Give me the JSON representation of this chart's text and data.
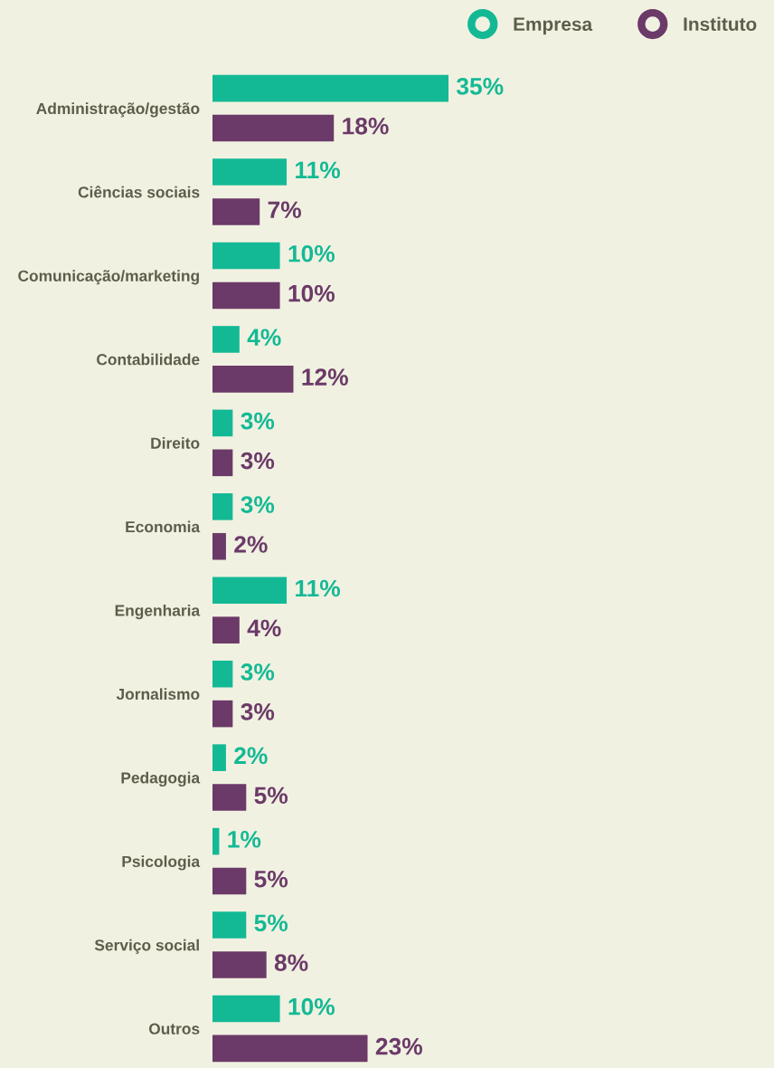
{
  "chart_data": {
    "type": "bar",
    "orientation": "horizontal",
    "legend": "top right",
    "tick_labels": "y",
    "grid": false,
    "categories": [
      "Administração/gestão",
      "Ciências sociais",
      "Comunicação/marketing",
      "Contabilidade",
      "Direito",
      "Economia",
      "Engenharia",
      "Jornalismo",
      "Pedagogia",
      "Psicologia",
      "Serviço social",
      "Outros"
    ],
    "series": [
      {
        "name": "Empresa",
        "color": "#13b995",
        "values": [
          35,
          11,
          10,
          4,
          3,
          3,
          11,
          3,
          2,
          1,
          5,
          10
        ],
        "value_labels": [
          "35%",
          "11%",
          "10%",
          "4%",
          "3%",
          "3%",
          "11%",
          "3%",
          "2%",
          "1%",
          "5%",
          "10%"
        ]
      },
      {
        "name": "Instituto",
        "color": "#6b3a68",
        "values": [
          18,
          7,
          10,
          12,
          3,
          2,
          4,
          3,
          5,
          5,
          8,
          23
        ],
        "value_labels": [
          "18%",
          "7%",
          "10%",
          "12%",
          "3%",
          "2%",
          "4%",
          "3%",
          "5%",
          "5%",
          "8%",
          "23%"
        ]
      }
    ]
  }
}
